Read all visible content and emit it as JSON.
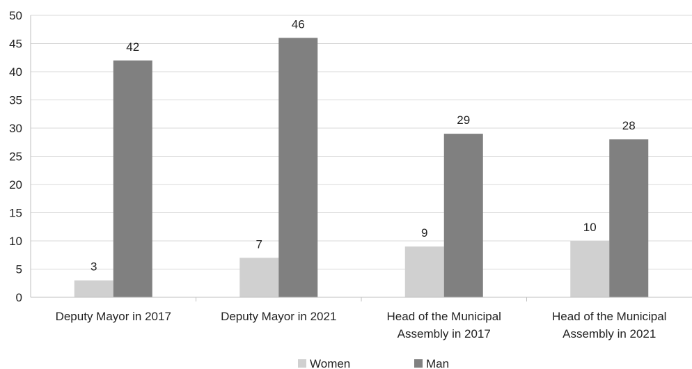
{
  "chart_data": {
    "type": "bar",
    "categories": [
      [
        "Deputy Mayor in 2017"
      ],
      [
        "Deputy Mayor in 2021"
      ],
      [
        "Head of the Municipal",
        "Assembly in 2017"
      ],
      [
        "Head of the Municipal",
        "Assembly in 2021"
      ]
    ],
    "series": [
      {
        "name": "Women",
        "values": [
          3,
          7,
          9,
          10
        ],
        "color": "#d0d0d0"
      },
      {
        "name": "Man",
        "values": [
          42,
          46,
          29,
          28
        ],
        "color": "#808080"
      }
    ],
    "title": "",
    "xlabel": "",
    "ylabel": "",
    "ylim": [
      0,
      50
    ],
    "yticks": [
      0,
      5,
      10,
      15,
      20,
      25,
      30,
      35,
      40,
      45,
      50
    ],
    "grid": true,
    "gridColor": "#d9d9d9",
    "axisColor": "#bfbfbf",
    "legend": "bottom-center",
    "data_labels": true
  }
}
